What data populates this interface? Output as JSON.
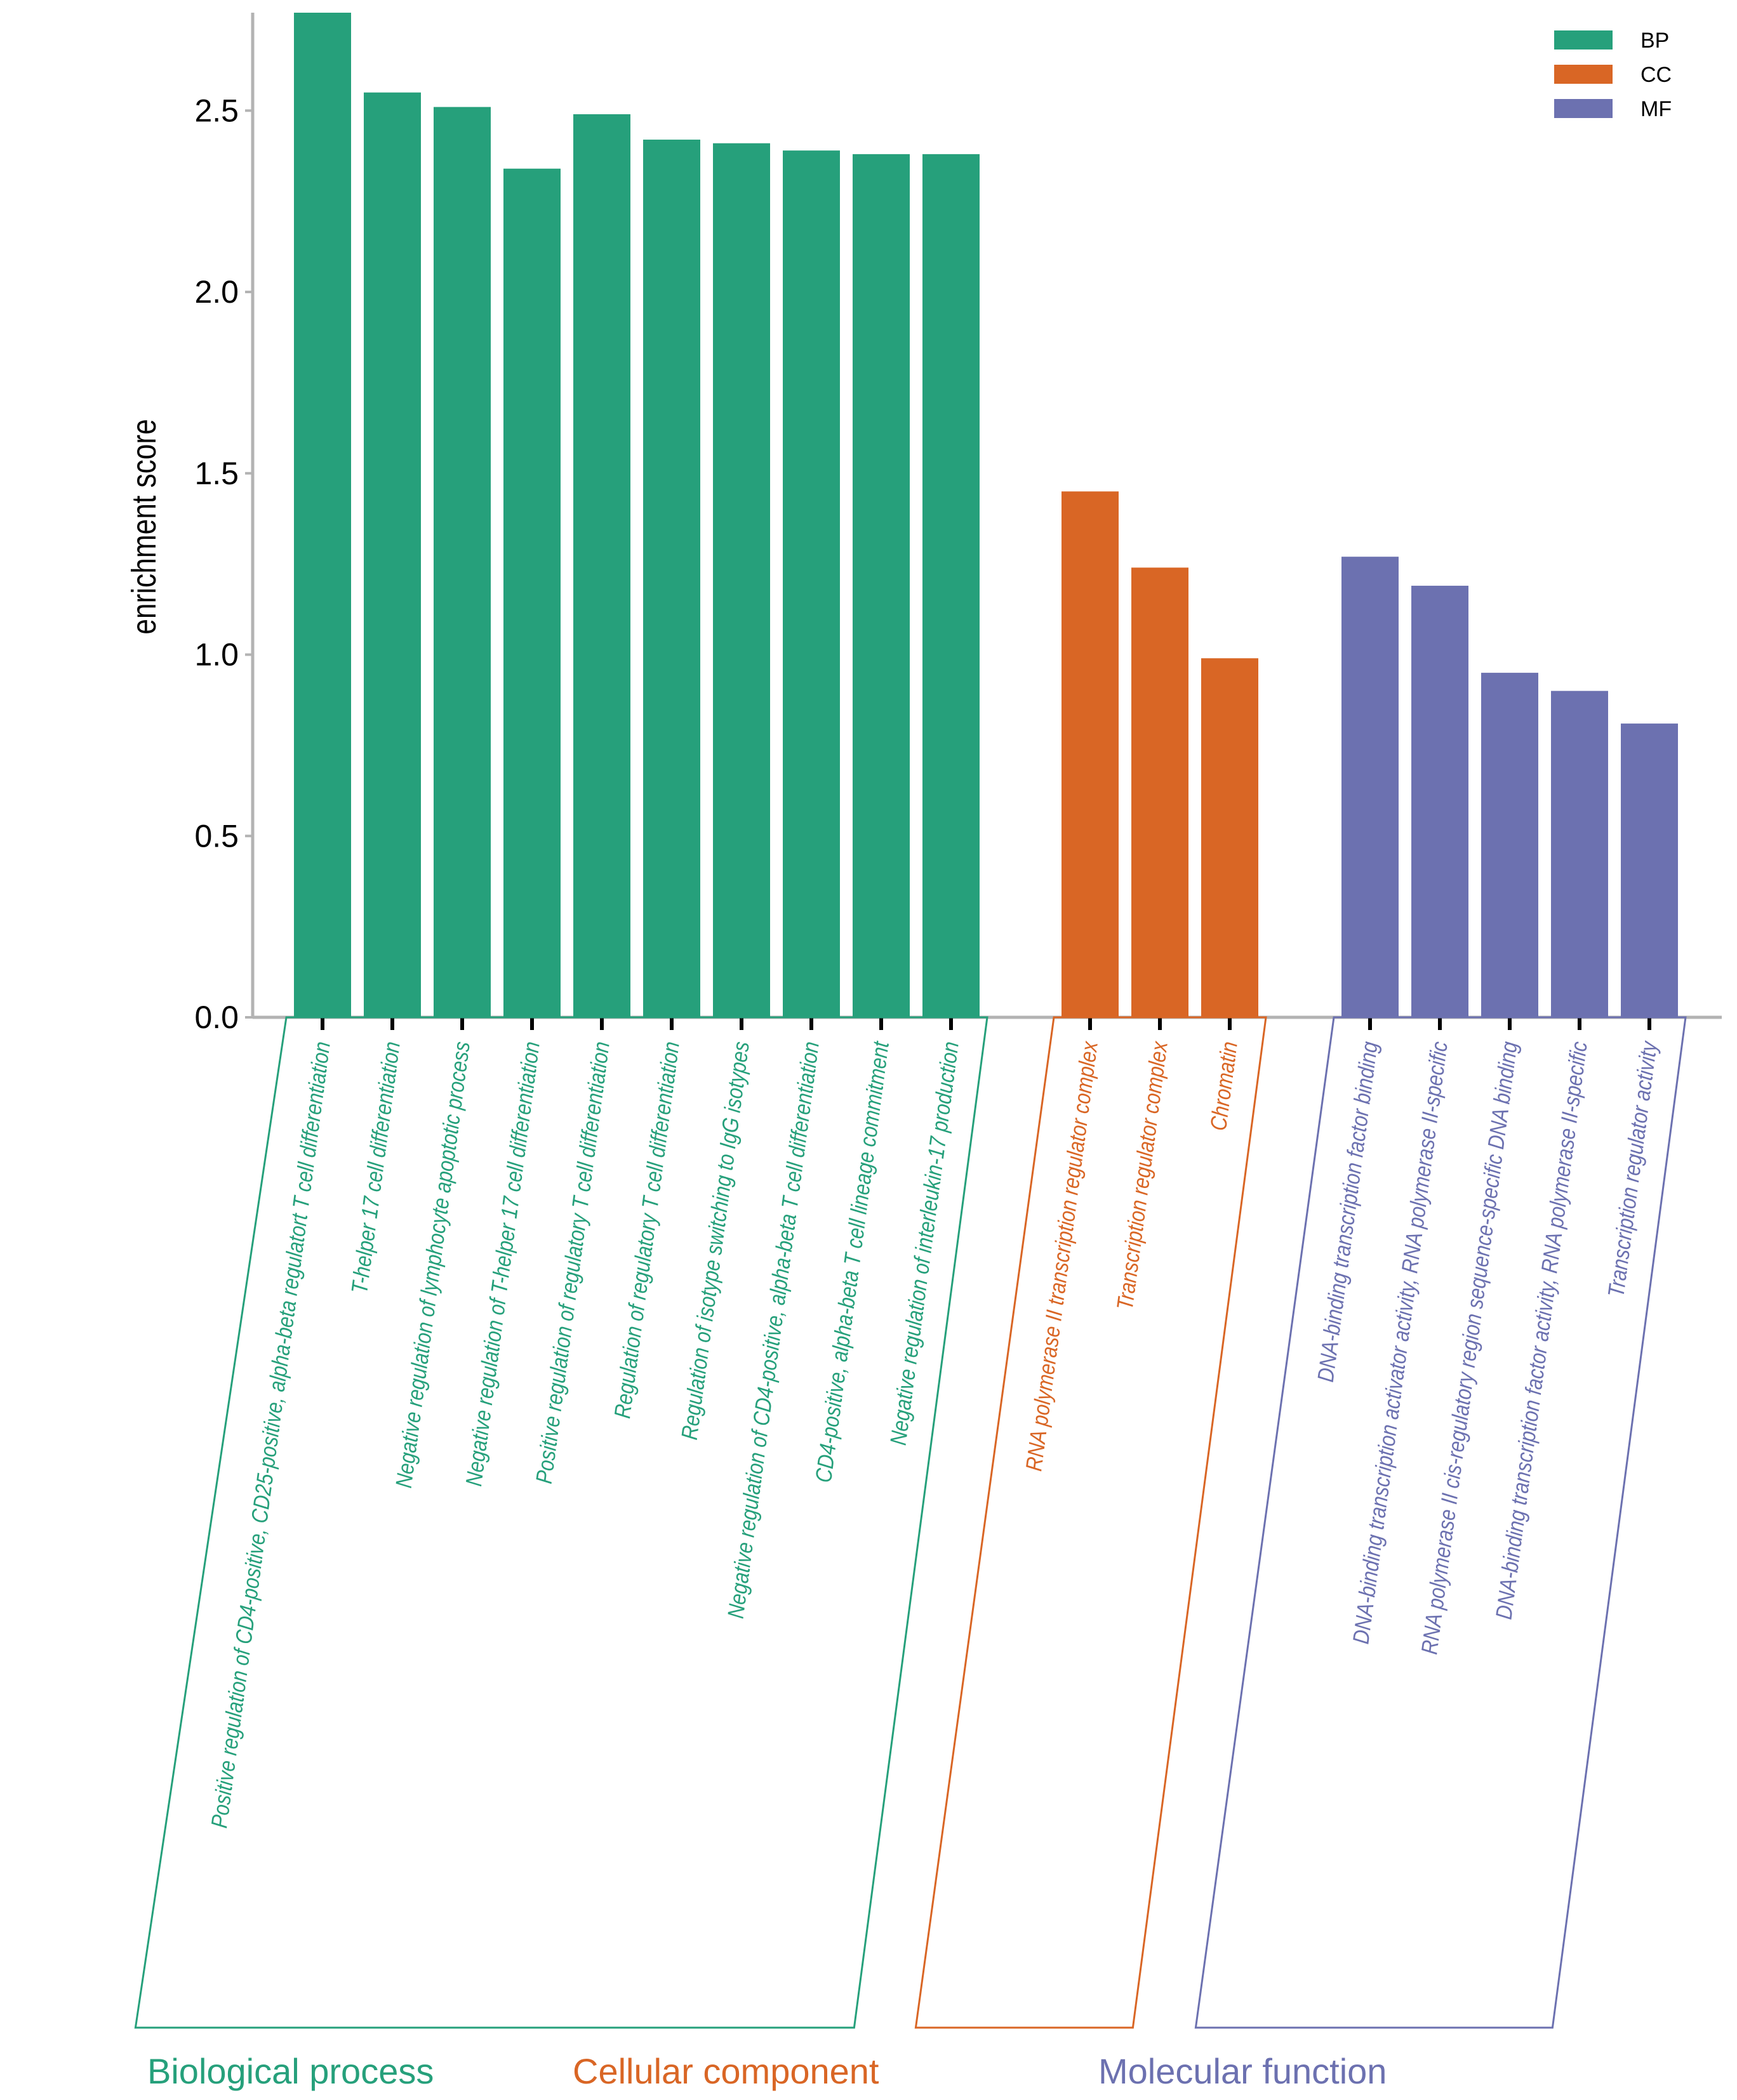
{
  "chart_data": {
    "type": "bar",
    "ylabel": "enrichment score",
    "ylim": [
      0,
      2.77
    ],
    "yticks": [
      "0.0",
      "0.5",
      "1.0",
      "1.5",
      "2.0",
      "2.5"
    ],
    "ytick_values": [
      0,
      0.5,
      1.0,
      1.5,
      2.0,
      2.5
    ],
    "legend_position": "top-right",
    "groups": [
      {
        "key": "BP",
        "title": "Biological process",
        "color": "#26a07b",
        "categories": [
          "Positive regulation of CD4-positive, CD25-positive, alpha-beta regulatort T cell differentiation",
          "T-helper 17 cell differentiation",
          "Negative regulation of lymphocyte apoptotic process",
          "Negative regulation of T-helper 17 cell differentiation",
          "Positive regulation of regulatory T cell differentiation",
          "Regulation of regulatory T cell differentiation",
          "Regulation of isotype switching to IgG isotypes",
          "Negative regulation of CD4-positive, alpha-beta T cell differentiation",
          "CD4-positive, alpha-beta T cell lineage commitment",
          "Negative regulation of interleukin-17 production"
        ],
        "values": [
          2.77,
          2.55,
          2.51,
          2.34,
          2.49,
          2.42,
          2.41,
          2.39,
          2.38,
          2.38
        ]
      },
      {
        "key": "CC",
        "title": "Cellular component",
        "color": "#d96625",
        "categories": [
          "RNA polymerase II transcription regulator complex",
          "Transcription regulator complex",
          "Chromatin"
        ],
        "values": [
          1.45,
          1.24,
          0.99
        ]
      },
      {
        "key": "MF",
        "title": "Molecular function",
        "color": "#6c71b0",
        "categories": [
          "DNA-binding transcription factor binding",
          "DNA-binding transcription activator activity, RNA polymerase II-specific",
          "RNA polymerase II cis-regulatory region sequence-specific DNA binding",
          "DNA-binding transcription factor activity, RNA polymerase II-specific",
          "Transcription regulator activity"
        ],
        "values": [
          1.27,
          1.19,
          0.95,
          0.9,
          0.81
        ]
      }
    ]
  }
}
